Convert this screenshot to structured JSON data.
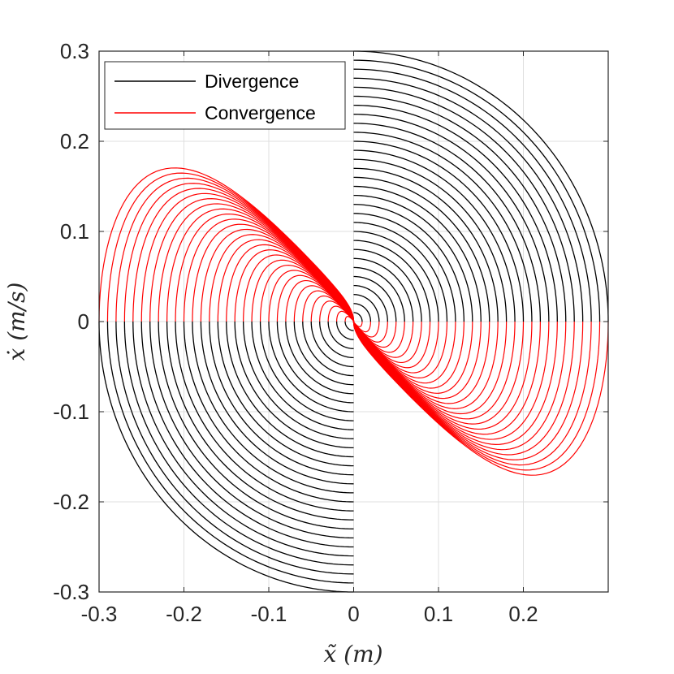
{
  "chart_data": {
    "type": "line",
    "title": "",
    "xlabel": "x̃ (m)",
    "ylabel": "ẋ (m/s)",
    "xlim": [
      -0.3,
      0.3
    ],
    "ylim": [
      -0.3,
      0.3
    ],
    "grid": true,
    "legend_position": "top-left",
    "xticks": [
      "-0.3",
      "-0.2",
      "-0.1",
      "0",
      "0.1",
      "0.2"
    ],
    "yticks": [
      "0.3",
      "0.2",
      "0.1",
      "0",
      "-0.1",
      "-0.2",
      "-0.3"
    ],
    "series": [
      {
        "name": "Divergence",
        "color": "#000000",
        "description": "Family of half-ellipses centered at the origin: upper half for x>0 and lower half for x<0",
        "radii_x": [
          0.0,
          0.3
        ],
        "radii_y": [
          0.0,
          0.3
        ],
        "curve_count": 30
      },
      {
        "name": "Convergence",
        "color": "#ff0000",
        "description": "Family of half-loops returning to the origin: upper half for x<0 (peak near x=-0.15, y=0.15) and lower half for x>0 (trough near x=0.15, y=-0.15)",
        "amplitude_x": [
          0.0,
          0.3
        ],
        "amplitude_y": [
          0.0,
          0.15
        ],
        "curve_count": 30
      }
    ]
  }
}
